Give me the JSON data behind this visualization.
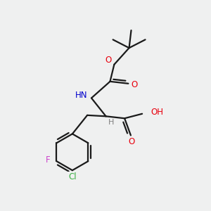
{
  "bg_color": "#eff0f0",
  "bond_color": "#1a1a1a",
  "colors": {
    "O": "#e8000d",
    "N": "#0000cc",
    "Cl": "#3cb044",
    "F": "#cc44cc",
    "C": "#1a1a1a",
    "H": "#808080"
  }
}
